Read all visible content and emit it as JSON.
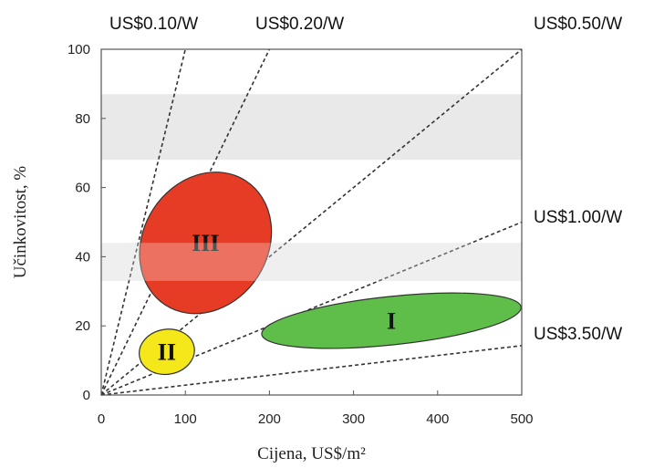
{
  "chart_data": {
    "type": "scatter",
    "xlabel": "Cijena, US$/m²",
    "ylabel": "Učinkovitost, %",
    "xlim": [
      0,
      500
    ],
    "ylim": [
      0,
      100
    ],
    "x_ticks": [
      "0",
      "100",
      "200",
      "300",
      "400",
      "500"
    ],
    "y_ticks": [
      "0",
      "20",
      "40",
      "60",
      "80",
      "100"
    ],
    "grid": false,
    "bands": [
      {
        "y_from": 68,
        "y_to": 87,
        "color": "#e9e9e9"
      },
      {
        "y_from": 33,
        "y_to": 44,
        "color": "#e9e9e9"
      }
    ],
    "cost_lines": [
      {
        "label": "US$0.10/W",
        "usd_per_watt": 0.1,
        "end_x": 100
      },
      {
        "label": "US$0.20/W",
        "usd_per_watt": 0.2,
        "end_x": 200
      },
      {
        "label": "US$0.50/W",
        "usd_per_watt": 0.5,
        "end_x": 500
      },
      {
        "label": "US$1.00/W",
        "usd_per_watt": 1.0,
        "end_x": 500
      },
      {
        "label": "US$3.50/W",
        "usd_per_watt": 3.5,
        "end_x": 500
      }
    ],
    "regions": [
      {
        "label": "I",
        "cx": 345,
        "cy": 21.5,
        "rx": 155,
        "ry": 7,
        "rotation_deg": -6,
        "color": "#5fbe4a"
      },
      {
        "label": "II",
        "cx": 78,
        "cy": 12.5,
        "rx": 33,
        "ry": 6.5,
        "rotation_deg": -10,
        "color": "#f5e81a"
      },
      {
        "label": "III",
        "cx": 124,
        "cy": 44,
        "rx": 88,
        "ry": 18,
        "rotation_deg": -57,
        "color": "#e63b24"
      }
    ]
  }
}
